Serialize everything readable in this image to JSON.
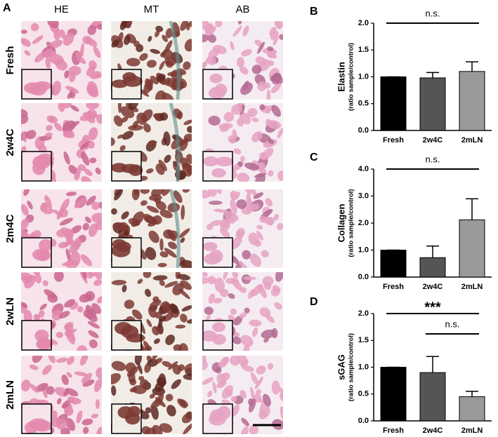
{
  "histology": {
    "label": "A",
    "columns": [
      "HE",
      "MT",
      "AB"
    ],
    "rows": [
      "Fresh",
      "2w4C",
      "2m4C",
      "2wLN",
      "2mLN"
    ]
  },
  "chart_data": [
    {
      "type": "bar",
      "label": "B",
      "ylabel": "Elastin",
      "ylabel_sub": "(ratio sample/control)",
      "categories": [
        "Fresh",
        "2w4C",
        "2mLN"
      ],
      "values": [
        1.0,
        0.98,
        1.1
      ],
      "errors": [
        0,
        0.1,
        0.18
      ],
      "colors": [
        "#000000",
        "#555555",
        "#999999"
      ],
      "ylim": [
        0,
        2
      ],
      "yticks": [
        {
          "value": 0,
          "label": "0.0"
        },
        {
          "value": 0.5,
          "label": "0.5"
        },
        {
          "value": 1,
          "label": "1.0"
        },
        {
          "value": 1.5,
          "label": "1.5"
        },
        {
          "value": 2,
          "label": "2.0"
        }
      ],
      "annotations": [
        {
          "text": "n.s.",
          "from": "Fresh",
          "to": "2mLN"
        }
      ]
    },
    {
      "type": "bar",
      "label": "C",
      "ylabel": "Collagen",
      "ylabel_sub": "(ratio sample/control)",
      "categories": [
        "Fresh",
        "2w4C",
        "2mLN"
      ],
      "values": [
        1.0,
        0.72,
        2.12
      ],
      "errors": [
        0,
        0.43,
        0.78
      ],
      "colors": [
        "#000000",
        "#555555",
        "#999999"
      ],
      "ylim": [
        0,
        4
      ],
      "yticks": [
        {
          "value": 0,
          "label": "0.0"
        },
        {
          "value": 1,
          "label": "1.0"
        },
        {
          "value": 2,
          "label": "2.0"
        },
        {
          "value": 3,
          "label": "3.0"
        },
        {
          "value": 4,
          "label": "4.0"
        }
      ],
      "annotations": [
        {
          "text": "n.s.",
          "from": "Fresh",
          "to": "2mLN"
        }
      ]
    },
    {
      "type": "bar",
      "label": "D",
      "ylabel": "sGAG",
      "ylabel_sub": "(ratio sample/control)",
      "categories": [
        "Fresh",
        "2w4C",
        "2mLN"
      ],
      "values": [
        1.0,
        0.9,
        0.45
      ],
      "errors": [
        0,
        0.3,
        0.1
      ],
      "colors": [
        "#000000",
        "#555555",
        "#999999"
      ],
      "ylim": [
        0,
        2
      ],
      "yticks": [
        {
          "value": 0,
          "label": "0.0"
        },
        {
          "value": 0.5,
          "label": "0.5"
        },
        {
          "value": 1,
          "label": "1.0"
        },
        {
          "value": 1.5,
          "label": "1.5"
        },
        {
          "value": 2,
          "label": "2.0"
        }
      ],
      "annotations": [
        {
          "text": "***",
          "from": "Fresh",
          "to": "2mLN"
        },
        {
          "text": "n.s.",
          "from": "2w4C",
          "to": "2mLN"
        }
      ]
    }
  ]
}
